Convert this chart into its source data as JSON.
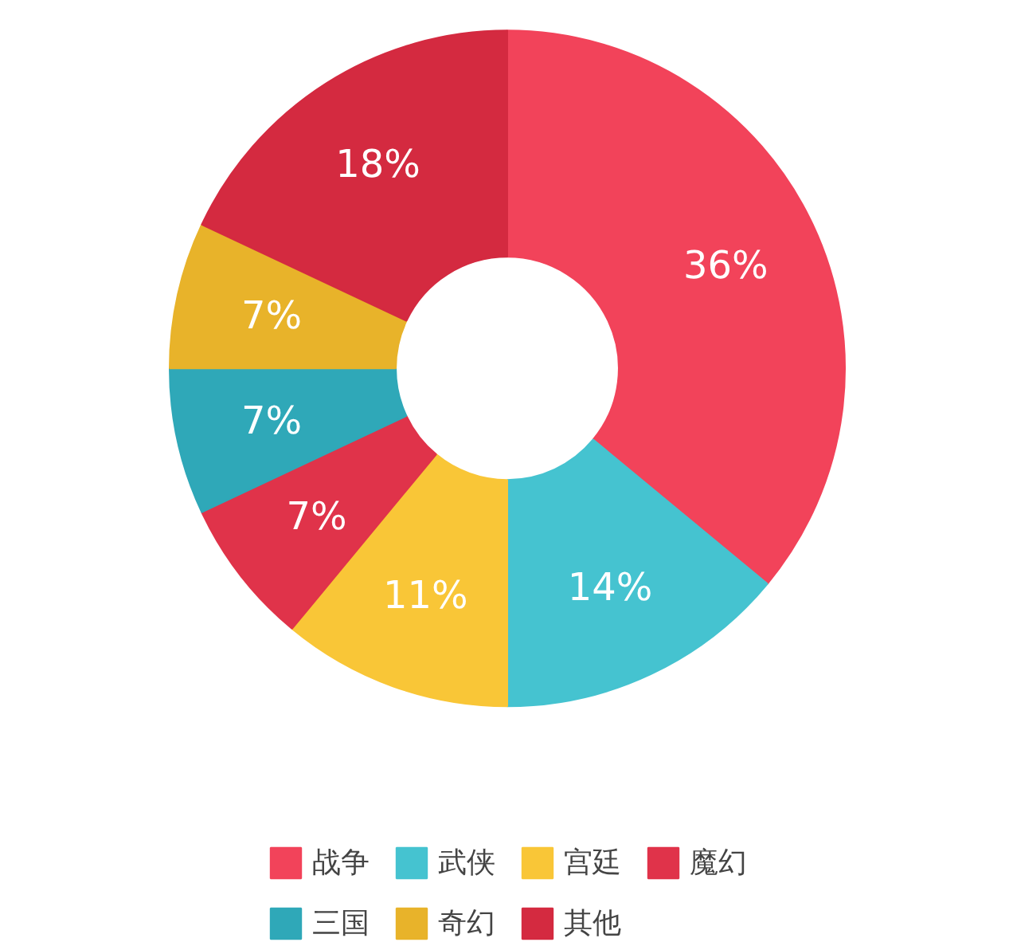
{
  "chart_data": {
    "type": "donut",
    "categories": [
      "战争",
      "武侠",
      "宫廷",
      "魔幻",
      "三国",
      "奇幻",
      "其他"
    ],
    "values": [
      36,
      14,
      11,
      7,
      7,
      7,
      18
    ],
    "colors": [
      "#f2435a",
      "#45c3d0",
      "#f9c637",
      "#e0334a",
      "#2fa8b8",
      "#e8b32a",
      "#d42a40"
    ],
    "value_labels": [
      "36%",
      "14%",
      "11%",
      "7%",
      "7%",
      "7%",
      "18%"
    ],
    "legend": "bottom"
  }
}
